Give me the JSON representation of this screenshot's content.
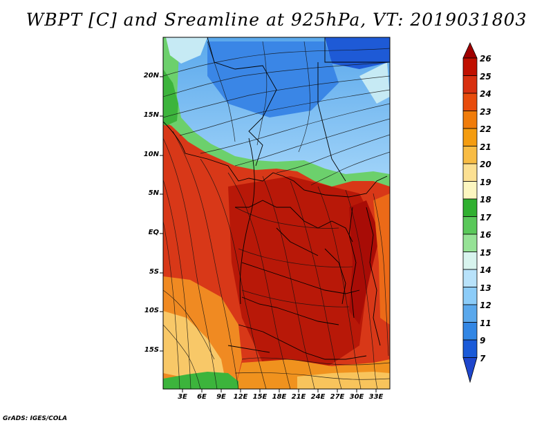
{
  "title": "WBPT [C] and Sreamline at 925hPa, VT: 2019031803",
  "footer": "GrADS: IGES/COLA",
  "map": {
    "lat_ticks": [
      "20N",
      "15N",
      "10N",
      "5N",
      "EQ",
      "5S",
      "10S",
      "15S"
    ],
    "lon_ticks": [
      "3E",
      "6E",
      "9E",
      "12E",
      "15E",
      "18E",
      "21E",
      "24E",
      "27E",
      "30E",
      "33E"
    ],
    "fields": [
      "wet-bulb potential temperature (shaded)",
      "streamlines at 925hPa",
      "country borders"
    ]
  },
  "colorbar": {
    "labels": [
      "26",
      "25",
      "24",
      "23",
      "22",
      "21",
      "20",
      "19",
      "18",
      "17",
      "16",
      "15",
      "14",
      "13",
      "12",
      "11",
      "9",
      "7"
    ],
    "colors": [
      "#a00000",
      "#c01000",
      "#d83010",
      "#e84c0c",
      "#f07c0a",
      "#f49c10",
      "#f8bc44",
      "#fce092",
      "#fcf6c0",
      "#30b030",
      "#5ac85a",
      "#96e296",
      "#d8f4ee",
      "#b8e2fa",
      "#8cccf8",
      "#5aa8ec",
      "#3286e4",
      "#1a5ad8",
      "#1e46cc"
    ]
  }
}
